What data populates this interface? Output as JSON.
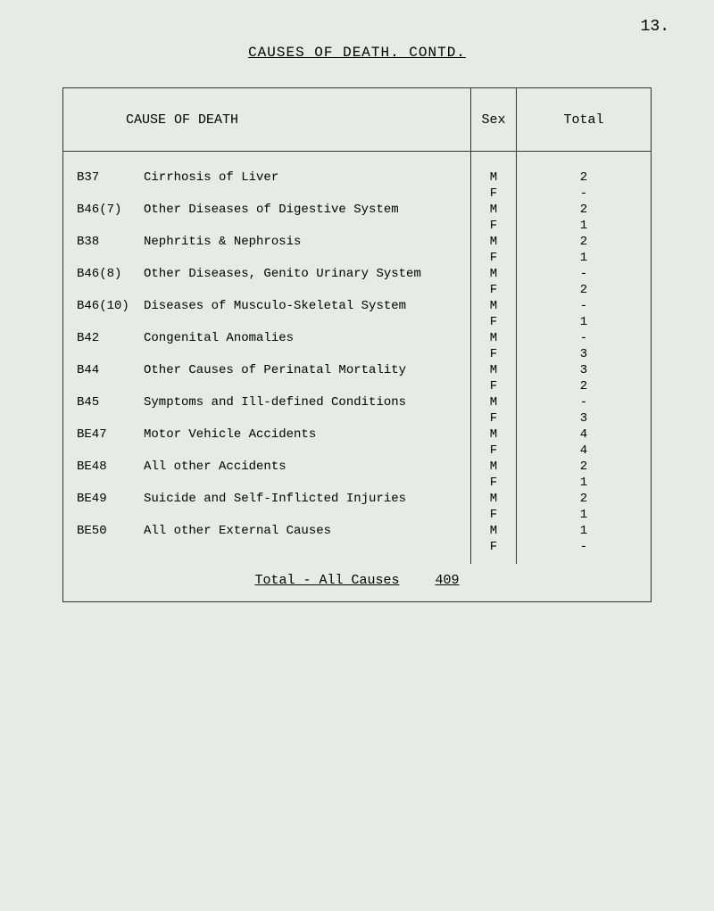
{
  "page_number": "13.",
  "title": "CAUSES OF DEATH.  CONTD.",
  "headers": {
    "cause": "CAUSE OF DEATH",
    "sex": "Sex",
    "total": "Total"
  },
  "rows": [
    {
      "code": "B37",
      "desc": "Cirrhosis of Liver",
      "m": "2",
      "f": "-"
    },
    {
      "code": "B46(7)",
      "desc": "Other Diseases of Digestive System",
      "m": "2",
      "f": "1"
    },
    {
      "code": "B38",
      "desc": "Nephritis & Nephrosis",
      "m": "2",
      "f": "1"
    },
    {
      "code": "B46(8)",
      "desc": "Other Diseases, Genito Urinary System",
      "m": "-",
      "f": "2"
    },
    {
      "code": "B46(10)",
      "desc": "Diseases of Musculo-Skeletal System",
      "m": "-",
      "f": "1"
    },
    {
      "code": "B42",
      "desc": "Congenital Anomalies",
      "m": "-",
      "f": "3"
    },
    {
      "code": "B44",
      "desc": "Other Causes of Perinatal Mortality",
      "m": "3",
      "f": "2"
    },
    {
      "code": "B45",
      "desc": "Symptoms and Ill-defined Conditions",
      "m": "-",
      "f": "3"
    },
    {
      "code": "BE47",
      "desc": "Motor Vehicle Accidents",
      "m": "4",
      "f": "4"
    },
    {
      "code": "BE48",
      "desc": "All other Accidents",
      "m": "2",
      "f": "1"
    },
    {
      "code": "BE49",
      "desc": "Suicide and Self-Inflicted Injuries",
      "m": "2",
      "f": "1"
    },
    {
      "code": "BE50",
      "desc": "All other External Causes",
      "m": "1",
      "f": "-"
    }
  ],
  "footer": {
    "label": "Total - All Causes",
    "value": "409"
  },
  "colors": {
    "background": "#e8eae5",
    "text": "#2a2a2a",
    "border": "#333333"
  }
}
